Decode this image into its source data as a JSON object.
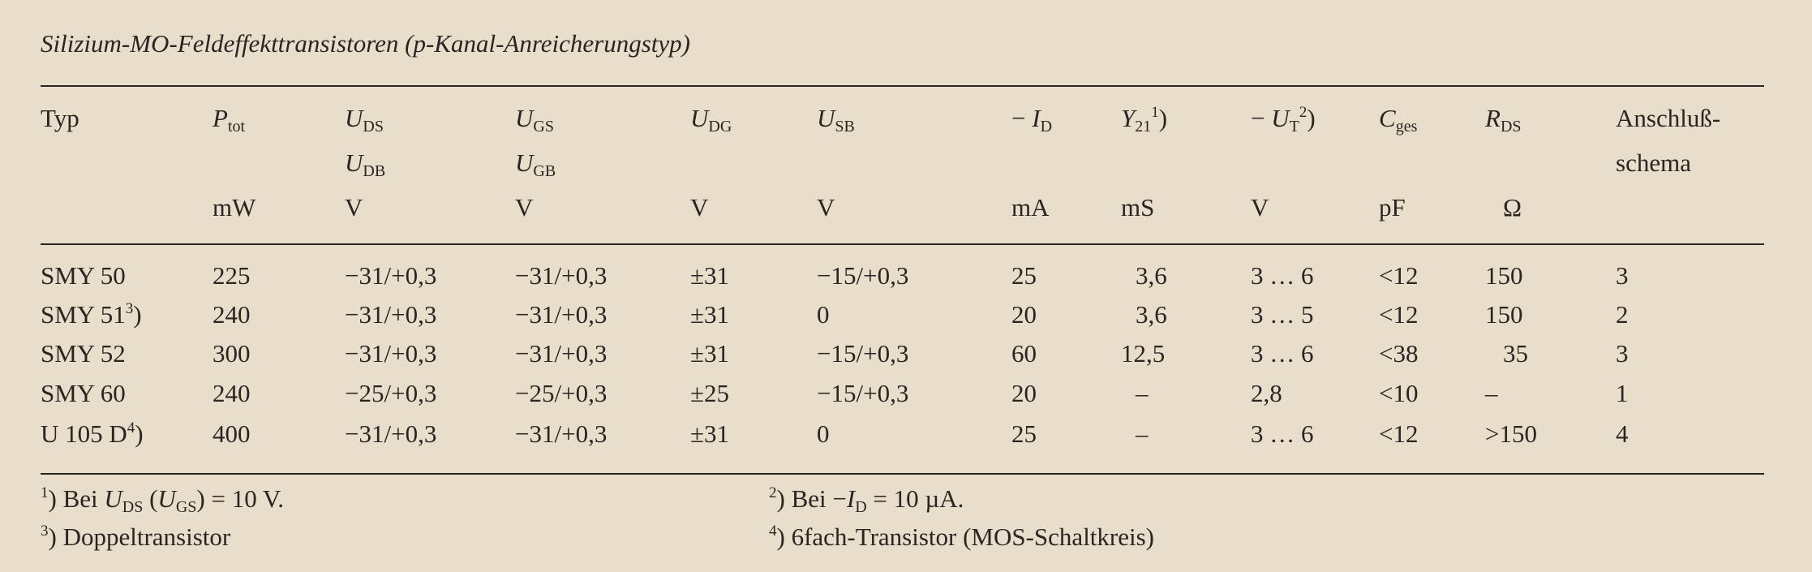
{
  "title": "Silizium-MO-Feldeffekttransistoren (p-Kanal-Anreicherungstyp)",
  "header": {
    "typ": "Typ",
    "ptot": {
      "main": "P",
      "sub": "tot",
      "unit": "mW"
    },
    "uds": {
      "main": "U",
      "sub": "DS",
      "main2": "U",
      "sub2": "DB",
      "unit": "V"
    },
    "ugs": {
      "main": "U",
      "sub": "GS",
      "main2": "U",
      "sub2": "GB",
      "unit": "V"
    },
    "udg": {
      "main": "U",
      "sub": "DG",
      "unit": "V"
    },
    "usb": {
      "main": "U",
      "sub": "SB",
      "unit": "V"
    },
    "id": {
      "prefix": "−",
      "main": "I",
      "sub": "D",
      "unit": "mA"
    },
    "y21": {
      "main": "Y",
      "sub": "21",
      "sup": "1",
      "close": ")",
      "unit": "mS"
    },
    "ut": {
      "prefix": "−",
      "main": "U",
      "sub": "T",
      "sup": "2",
      "close": ")",
      "unit": "V"
    },
    "cges": {
      "main": "C",
      "sub": "ges",
      "unit": "pF"
    },
    "rds": {
      "main": "R",
      "sub": "DS",
      "unit": "Ω"
    },
    "anschluss": {
      "line1": "Anschluß-",
      "line2": "schema"
    }
  },
  "rows": [
    {
      "typ": "SMY 50",
      "typ_sup": "",
      "typ_close": "",
      "ptot": "225",
      "uds": "−31/+0,3",
      "ugs": "−31/+0,3",
      "udg": "±31",
      "usb": "−15/+0,3",
      "id": "25",
      "y21": "3,6",
      "ut": "3 … 6",
      "cges": "<12",
      "rds": "150",
      "schema": "3"
    },
    {
      "typ": "SMY 51",
      "typ_sup": "3",
      "typ_close": ")",
      "ptot": "240",
      "uds": "−31/+0,3",
      "ugs": "−31/+0,3",
      "udg": "±31",
      "usb": "0",
      "id": "20",
      "y21": "3,6",
      "ut": "3 … 5",
      "cges": "<12",
      "rds": "150",
      "schema": "2"
    },
    {
      "typ": "SMY 52",
      "typ_sup": "",
      "typ_close": "",
      "ptot": "300",
      "uds": "−31/+0,3",
      "ugs": "−31/+0,3",
      "udg": "±31",
      "usb": "−15/+0,3",
      "id": "60",
      "y21": "12,5",
      "ut": "3 … 6",
      "cges": "<38",
      "rds": "35",
      "schema": "3"
    },
    {
      "typ": "SMY 60",
      "typ_sup": "",
      "typ_close": "",
      "ptot": "240",
      "uds": "−25/+0,3",
      "ugs": "−25/+0,3",
      "udg": "±25",
      "usb": "−15/+0,3",
      "id": "20",
      "y21": "–",
      "ut": "2,8",
      "cges": "<10",
      "rds": "–",
      "schema": "1"
    },
    {
      "typ": "U 105 D",
      "typ_sup": "4",
      "typ_close": ")",
      "ptot": "400",
      "uds": "−31/+0,3",
      "ugs": "−31/+0,3",
      "udg": "±31",
      "usb": "0",
      "id": "25",
      "y21": "–",
      "ut": "3 … 6",
      "cges": "<12",
      "rds": ">150",
      "schema": "4"
    }
  ],
  "footnotes": {
    "f1": {
      "mark": "1",
      "text1": ") Bei ",
      "var": "U",
      "sub": "DS",
      "text2": " (",
      "var2": "U",
      "sub2": "GS",
      "text3": ") = 10 V."
    },
    "f2": {
      "mark": "2",
      "text1": ") Bei −",
      "var": "I",
      "sub": "D",
      "text2": " = 10 µA."
    },
    "f3": {
      "mark": "3",
      "text": ") Doppeltransistor"
    },
    "f4": {
      "mark": "4",
      "text": ") 6fach-Transistor (MOS-Schaltkreis)"
    }
  }
}
